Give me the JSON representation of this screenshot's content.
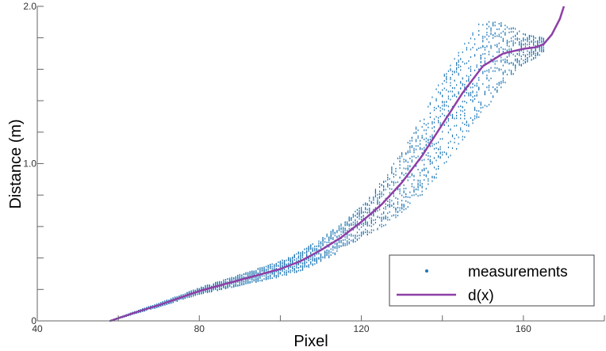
{
  "chart_data": {
    "type": "scatter",
    "xlabel": "Pixel",
    "ylabel": "Distance (m)",
    "xlim": [
      40,
      180
    ],
    "ylim": [
      0,
      2.0
    ],
    "xticks": [
      40,
      60,
      80,
      100,
      120,
      140,
      160,
      180
    ],
    "xtick_labels": [
      "40",
      "",
      "80",
      "",
      "120",
      "",
      "160",
      ""
    ],
    "yticks": [
      0,
      0.2,
      0.4,
      0.6,
      0.8,
      1.0,
      1.2,
      1.4,
      1.6,
      1.8,
      2.0
    ],
    "ytick_labels": [
      "0",
      "",
      "",
      "",
      "",
      "1.0",
      "",
      "",
      "",
      "",
      "2.0"
    ],
    "grid": false,
    "legend": {
      "placement": "bottom-right",
      "entries": [
        "measurements",
        "d(x)"
      ]
    },
    "series": [
      {
        "name": "measurements",
        "kind": "scatter",
        "color": "#1f77b4",
        "columns_x_range": [
          58,
          165
        ],
        "spread_note_y": [
          [
            58,
            0.0
          ],
          [
            80,
            0.02
          ],
          [
            100,
            0.05
          ],
          [
            120,
            0.1
          ],
          [
            130,
            0.2
          ],
          [
            140,
            0.3
          ],
          [
            150,
            0.3
          ],
          [
            160,
            0.1
          ],
          [
            165,
            0.05
          ]
        ]
      },
      {
        "name": "d(x)",
        "kind": "line",
        "color": "#8e3fa6",
        "x": [
          58,
          65,
          70,
          80,
          90,
          100,
          105,
          110,
          115,
          120,
          125,
          130,
          135,
          140,
          145,
          150,
          155,
          160,
          163,
          165,
          167,
          169,
          170
        ],
        "y": [
          0.0,
          0.06,
          0.1,
          0.19,
          0.26,
          0.33,
          0.38,
          0.45,
          0.53,
          0.63,
          0.74,
          0.88,
          1.05,
          1.25,
          1.45,
          1.62,
          1.7,
          1.73,
          1.74,
          1.76,
          1.82,
          1.92,
          2.0
        ]
      }
    ]
  }
}
